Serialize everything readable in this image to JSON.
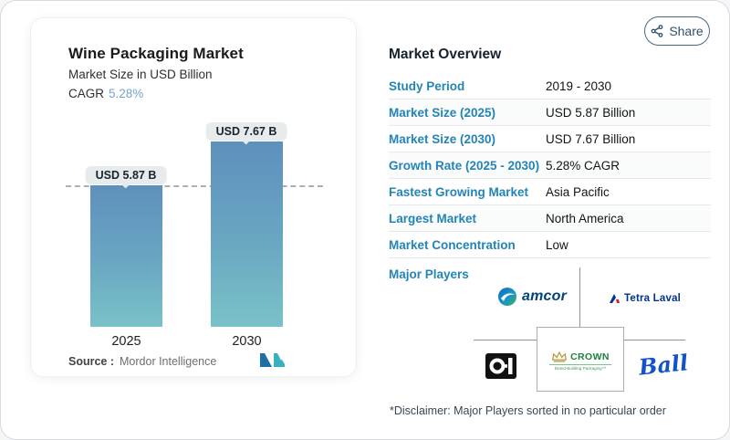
{
  "chart_card": {
    "title": "Wine Packaging Market",
    "subtitle": "Market Size in USD Billion",
    "cagr_label": "CAGR",
    "cagr_value": "5.28%",
    "source_label": "Source :",
    "source_value": "Mordor Intelligence",
    "accent_cagr_color": "#76a3cd"
  },
  "chart_data": {
    "type": "bar",
    "categories": [
      "2025",
      "2030"
    ],
    "values": [
      5.87,
      7.67
    ],
    "value_labels": [
      "USD 5.87 B",
      "USD 7.67 B"
    ],
    "title": "Wine Packaging Market",
    "ylabel": "Market Size in USD Billion",
    "ylim": [
      0,
      8
    ],
    "grid": false,
    "dashed_reference_value": 5.87,
    "bar_gradient_top": "#5e90bc",
    "bar_gradient_bottom": "#79c2c8"
  },
  "share_button": {
    "label": "Share"
  },
  "overview": {
    "heading": "Market Overview",
    "label_color": "#2384b5",
    "rows": [
      {
        "label": "Study Period",
        "value": "2019 - 2030"
      },
      {
        "label": "Market Size (2025)",
        "value": "USD 5.87 Billion"
      },
      {
        "label": "Market Size (2030)",
        "value": "USD 7.67 Billion"
      },
      {
        "label": "Growth Rate (2025 - 2030)",
        "value": "5.28% CAGR"
      },
      {
        "label": "Fastest Growing Market",
        "value": "Asia Pacific"
      },
      {
        "label": "Largest Market",
        "value": "North America"
      },
      {
        "label": "Market Concentration",
        "value": "Low"
      }
    ],
    "major_players_label": "Major Players",
    "players": {
      "amcor": {
        "name": "amcor"
      },
      "tetra": {
        "name": "Tetra Laval"
      },
      "oi": {
        "name": "O-I"
      },
      "crown": {
        "name": "CROWN",
        "tagline": "Brand-Building Packaging™"
      },
      "ball": {
        "name": "Ball"
      }
    },
    "disclaimer": "*Disclaimer: Major Players sorted in no particular order"
  }
}
